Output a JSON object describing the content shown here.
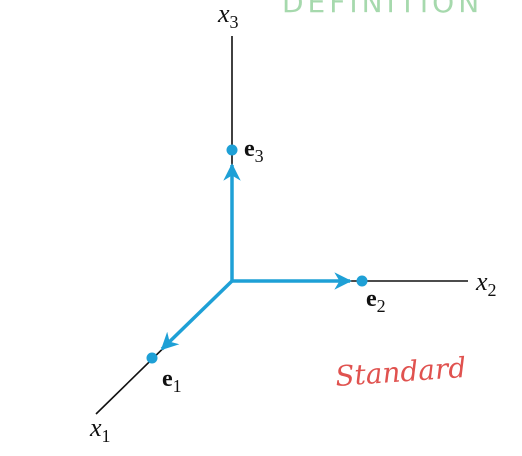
{
  "header": {
    "title": "DEFINITION"
  },
  "axes": [
    {
      "symbol": "x",
      "index": "1"
    },
    {
      "symbol": "x",
      "index": "2"
    },
    {
      "symbol": "x",
      "index": "3"
    }
  ],
  "vectors": [
    {
      "symbol": "e",
      "index": "1"
    },
    {
      "symbol": "e",
      "index": "2"
    },
    {
      "symbol": "e",
      "index": "3"
    }
  ],
  "annotation": "Standard"
}
